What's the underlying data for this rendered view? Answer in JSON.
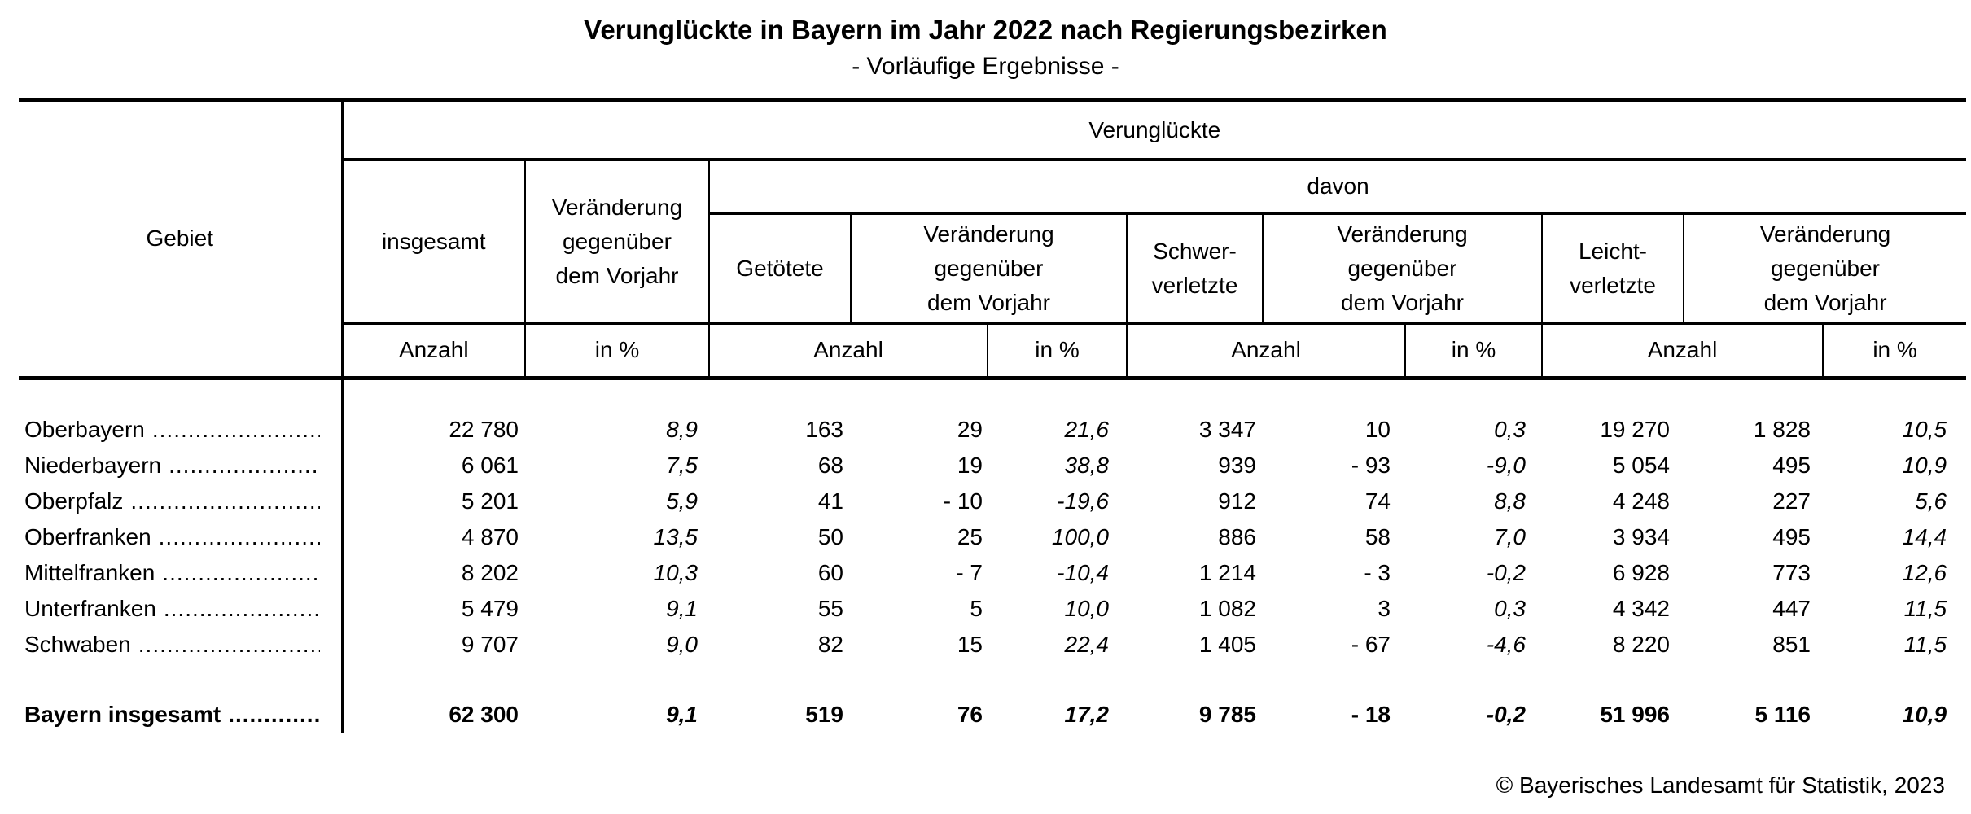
{
  "title": "Verunglückte in Bayern im Jahr 2022 nach Regierungsbezirken",
  "subtitle": "- Vorläufige Ergebnisse -",
  "header": {
    "gebiet": "Gebiet",
    "verunglueckte": "Verunglückte",
    "insgesamt": "insgesamt",
    "veraenderung_vorjahr": "Veränderung\ngegenüber\ndem Vorjahr",
    "davon": "davon",
    "getoetete": "Getötete",
    "schwerverletzte": "Schwer-\nverletzte",
    "leichtverletzte": "Leicht-\nverletzte",
    "anzahl": "Anzahl",
    "in_percent": "in %"
  },
  "rows": [
    {
      "name": "Oberbayern",
      "values": [
        "22 780",
        "8,9",
        "163",
        "29",
        "21,6",
        "3 347",
        "10",
        "0,3",
        "19 270",
        "1 828",
        "10,5"
      ]
    },
    {
      "name": "Niederbayern",
      "values": [
        "6 061",
        "7,5",
        "68",
        "19",
        "38,8",
        "939",
        "- 93",
        "-9,0",
        "5 054",
        "495",
        "10,9"
      ]
    },
    {
      "name": "Oberpfalz",
      "values": [
        "5 201",
        "5,9",
        "41",
        "- 10",
        "-19,6",
        "912",
        "74",
        "8,8",
        "4 248",
        "227",
        "5,6"
      ]
    },
    {
      "name": "Oberfranken",
      "values": [
        "4 870",
        "13,5",
        "50",
        "25",
        "100,0",
        "886",
        "58",
        "7,0",
        "3 934",
        "495",
        "14,4"
      ]
    },
    {
      "name": "Mittelfranken",
      "values": [
        "8 202",
        "10,3",
        "60",
        "- 7",
        "-10,4",
        "1 214",
        "- 3",
        "-0,2",
        "6 928",
        "773",
        "12,6"
      ]
    },
    {
      "name": "Unterfranken",
      "values": [
        "5 479",
        "9,1",
        "55",
        "5",
        "10,0",
        "1 082",
        "3",
        "0,3",
        "4 342",
        "447",
        "11,5"
      ]
    },
    {
      "name": "Schwaben",
      "values": [
        "9 707",
        "9,0",
        "82",
        "15",
        "22,4",
        "1 405",
        "- 67",
        "-4,6",
        "8 220",
        "851",
        "11,5"
      ]
    }
  ],
  "total_row": {
    "name": "Bayern insgesamt",
    "values": [
      "62 300",
      "9,1",
      "519",
      "76",
      "17,2",
      "9 785",
      "- 18",
      "-0,2",
      "51 996",
      "5 116",
      "10,9"
    ]
  },
  "leader_dots": "............................................................",
  "footer": "© Bayerisches Landesamt für Statistik, 2023",
  "colors": {
    "text": "#000000",
    "background": "#ffffff",
    "rule": "#000000"
  }
}
